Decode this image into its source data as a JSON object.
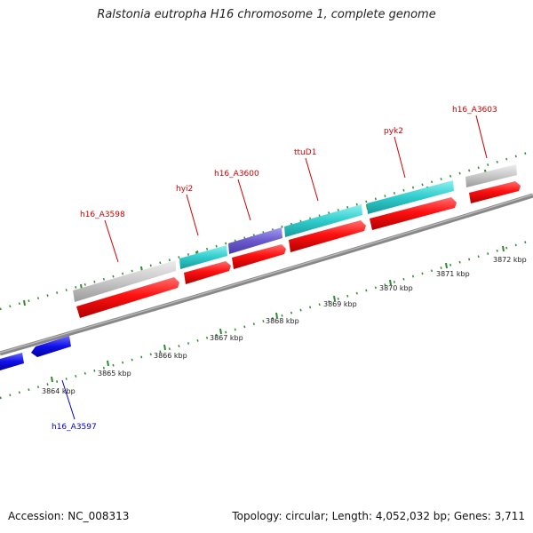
{
  "title": "Ralstonia eutropha H16 chromosome 1, complete genome",
  "footer": {
    "accession": "Accession: NC_008313",
    "summary": "Topology: circular; Length: 4,052,032 bp; Genes: 3,711"
  },
  "colors": {
    "axis": "#888888",
    "tick": "#2e8b2e",
    "red": "#ff1010",
    "gray": "#c8c8c8",
    "cyan": "#3cd2d2",
    "purple": "#7060d0",
    "blue": "#1010e0",
    "label_forward": "#cc0000",
    "label_reverse": "#0000cc"
  },
  "ruler": [
    "3864 kbp",
    "3865 kbp",
    "3866 kbp",
    "3867 kbp",
    "3868 kbp",
    "3869 kbp",
    "3870 kbp",
    "3871 kbp",
    "3872 kbp"
  ],
  "gene_labels": [
    {
      "name": "h16_A3598",
      "strand": "forward"
    },
    {
      "name": "hyi2",
      "strand": "forward"
    },
    {
      "name": "h16_A3600",
      "strand": "forward"
    },
    {
      "name": "ttuD1",
      "strand": "forward"
    },
    {
      "name": "pyk2",
      "strand": "forward"
    },
    {
      "name": "h16_A3603",
      "strand": "forward"
    },
    {
      "name": "h16_A3597",
      "strand": "reverse"
    }
  ]
}
